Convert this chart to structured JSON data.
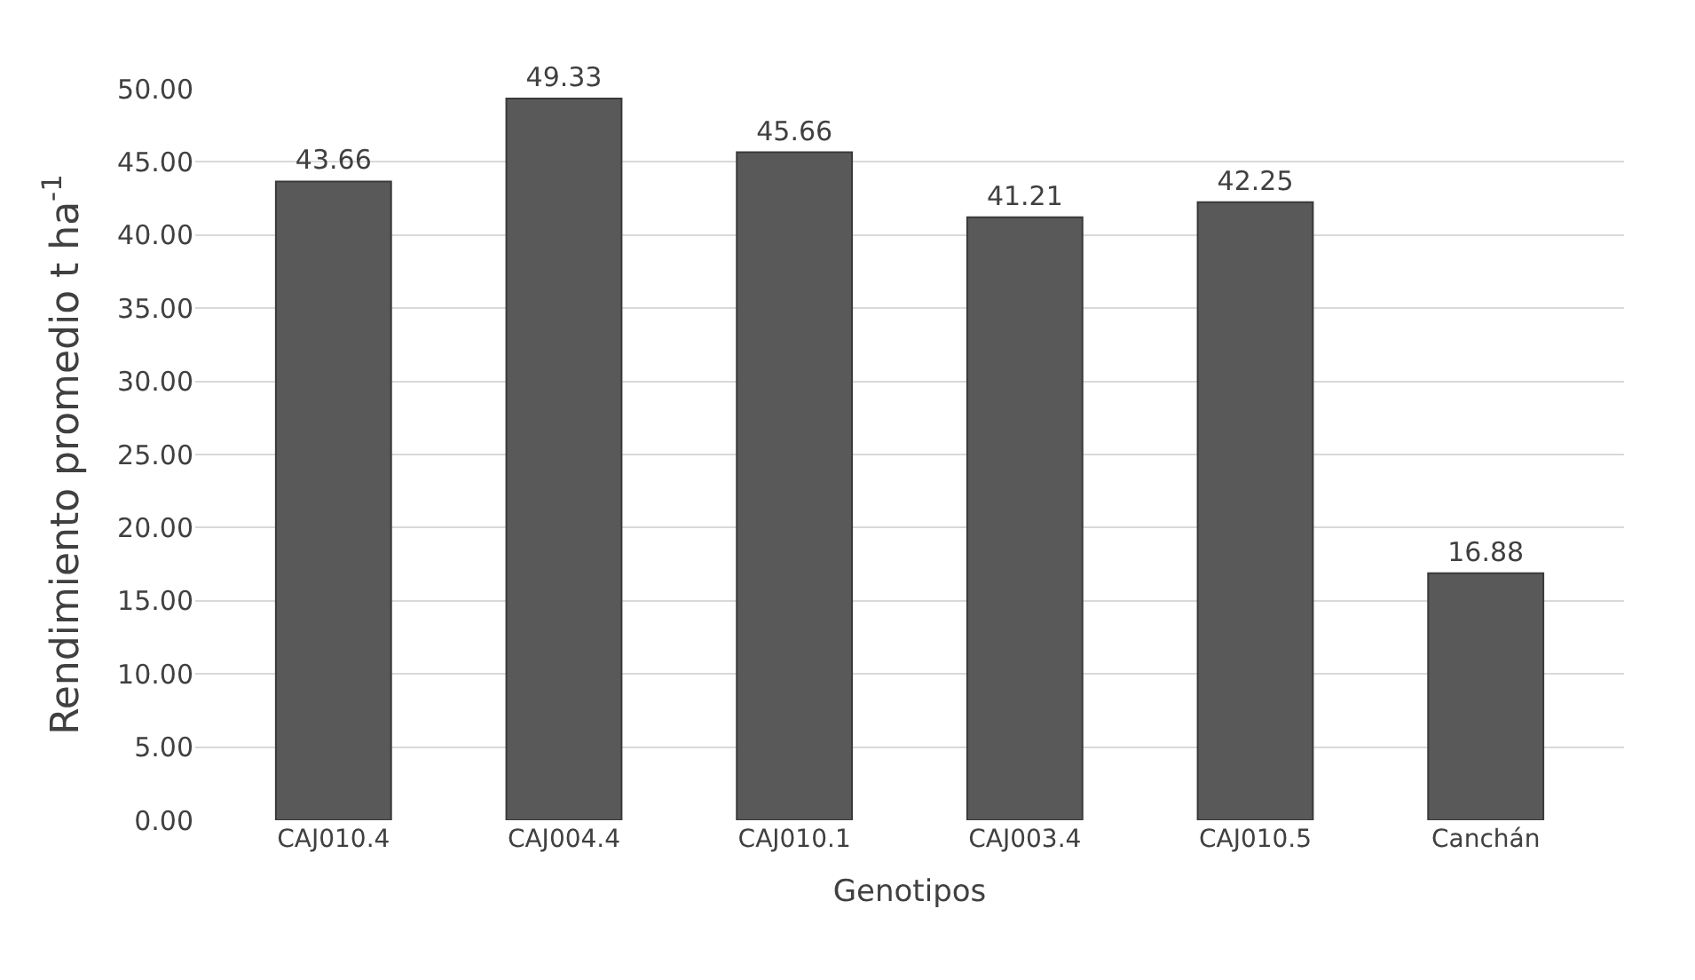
{
  "chart_data": {
    "type": "bar",
    "xlabel": "Genotipos",
    "ylabel": "Rendimiento promedio t ha$^{-1}$",
    "categories": [
      "CAJ010.4",
      "CAJ004.4",
      "CAJ010.1",
      "CAJ003.4",
      "CAJ010.5",
      "Canchán"
    ],
    "values": [
      43.66,
      49.33,
      45.66,
      41.21,
      42.25,
      16.88
    ],
    "color": "#595959",
    "data_labels": true,
    "grid": "y",
    "ylim": [
      0,
      50
    ],
    "yticks": [
      {
        "value": 0,
        "label": "0.00"
      },
      {
        "value": 5,
        "label": "5.00"
      },
      {
        "value": 10,
        "label": "10.00"
      },
      {
        "value": 15,
        "label": "15.00"
      },
      {
        "value": 20,
        "label": "20.00"
      },
      {
        "value": 25,
        "label": "25.00"
      },
      {
        "value": 30,
        "label": "30.00"
      },
      {
        "value": 35,
        "label": "35.00"
      },
      {
        "value": 40,
        "label": "40.00"
      },
      {
        "value": 45,
        "label": "45.00"
      },
      {
        "value": 50,
        "label": "50.00"
      }
    ]
  }
}
